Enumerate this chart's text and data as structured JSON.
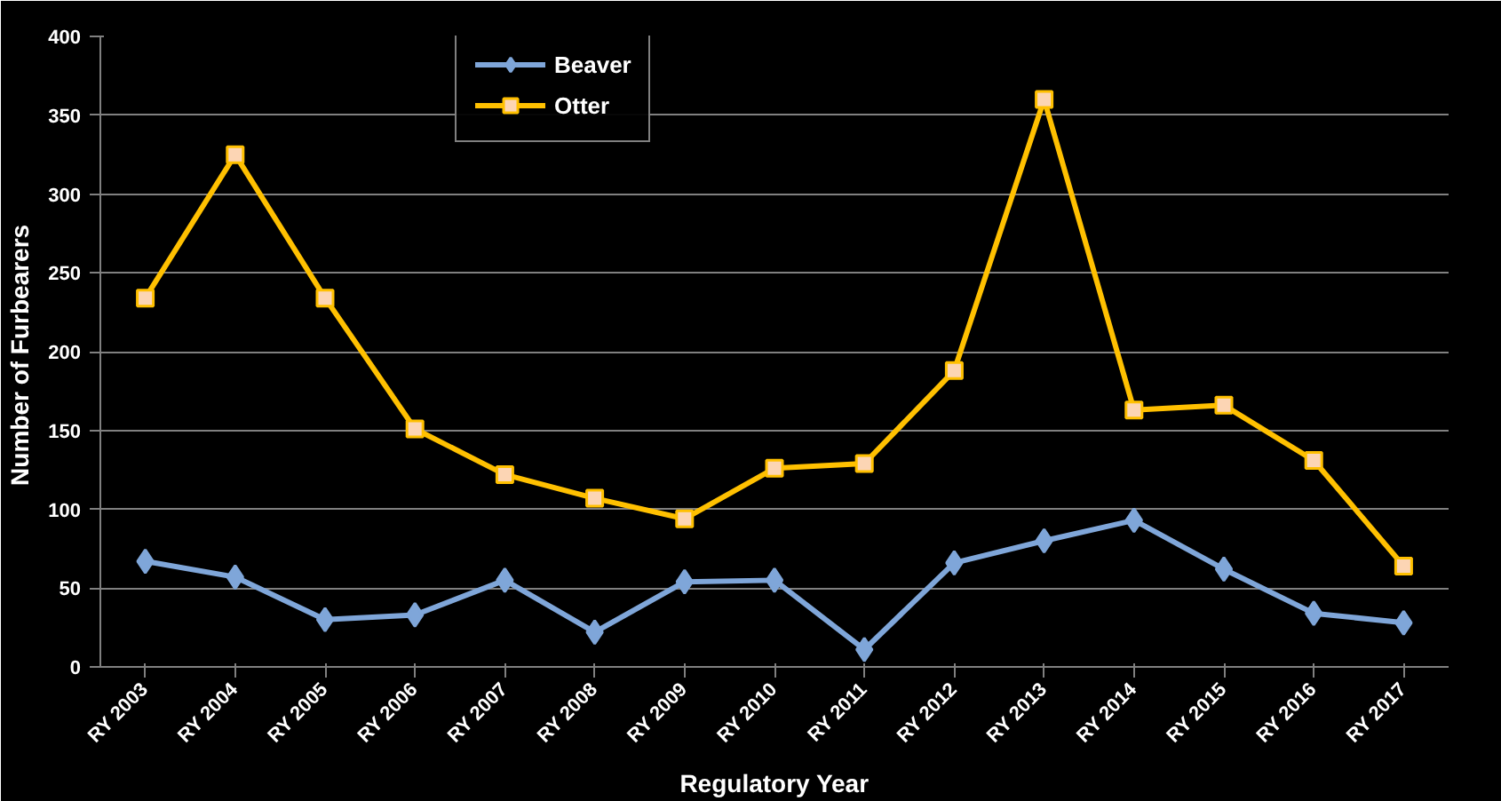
{
  "chart_data": {
    "type": "line",
    "xlabel": "Regulatory Year",
    "ylabel": "Number of  Furbearers",
    "categories": [
      "RY 2003",
      "RY 2004",
      "RY 2005",
      "RY 2006",
      "RY 2007",
      "RY 2008",
      "RY 2009",
      "RY 2010",
      "RY 2011",
      "RY 2012",
      "RY 2013",
      "RY 2014",
      "RY 2015",
      "RY 2016",
      "RY 2017"
    ],
    "series": [
      {
        "name": "Beaver",
        "color": "#7fa6d9",
        "marker": "diamond",
        "values": [
          67,
          57,
          30,
          33,
          55,
          22,
          54,
          55,
          11,
          66,
          80,
          93,
          62,
          34,
          28
        ]
      },
      {
        "name": "Otter",
        "color": "#ffc000",
        "marker": "square",
        "values": [
          234,
          325,
          234,
          151,
          122,
          107,
          94,
          126,
          129,
          188,
          360,
          163,
          166,
          131,
          64
        ]
      }
    ],
    "ylim": [
      0,
      400
    ],
    "yticks": [
      0,
      50,
      100,
      150,
      200,
      250,
      300,
      350,
      400
    ],
    "grid": "y",
    "legend": "top left",
    "line_style": "solid"
  }
}
